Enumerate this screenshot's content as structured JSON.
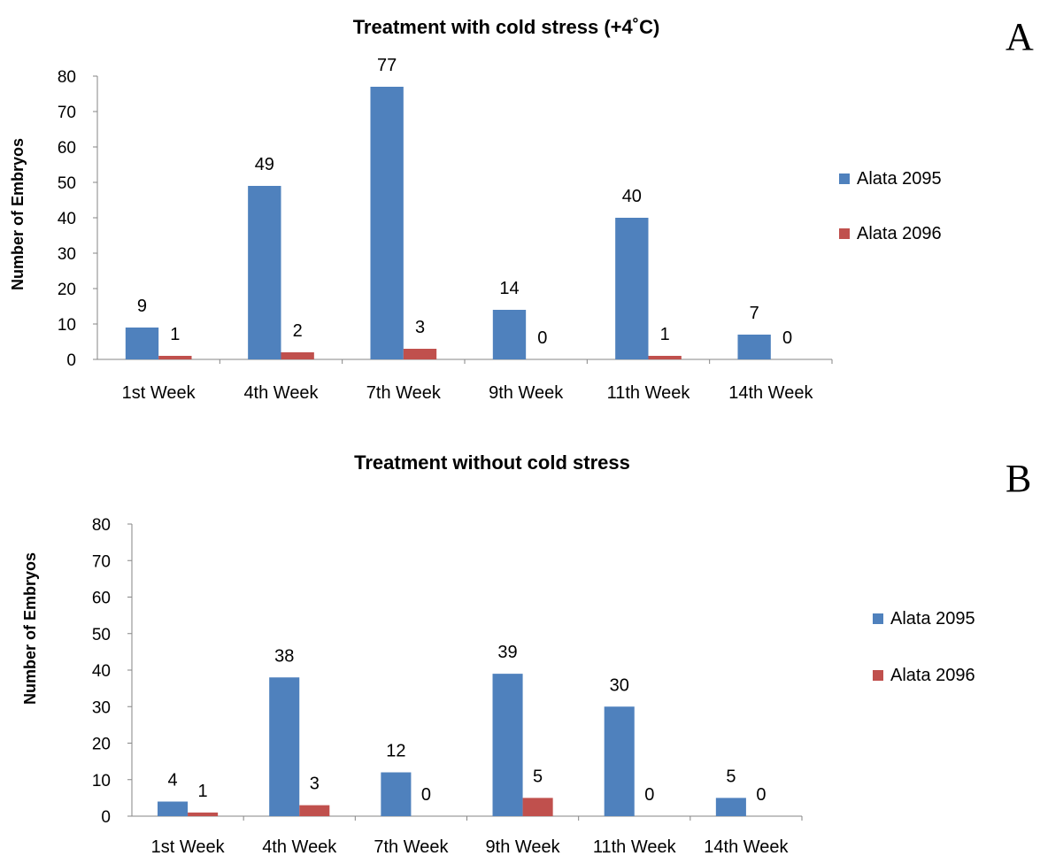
{
  "chart_data": [
    {
      "type": "bar",
      "panel_label": "A",
      "title": "Treatment with cold stress (+4˚C)",
      "ylabel": "Number of Embryos",
      "xlabel": "",
      "ylim": [
        0,
        80
      ],
      "yticks": [
        0,
        10,
        20,
        30,
        40,
        50,
        60,
        70,
        80
      ],
      "categories": [
        "1st Week",
        "4th Week",
        "7th Week",
        "9th Week",
        "11th Week",
        "14th Week"
      ],
      "legend_position": "right",
      "series": [
        {
          "name": "Alata 2095",
          "color": "#4F81BD",
          "values": [
            9,
            49,
            77,
            14,
            40,
            7
          ]
        },
        {
          "name": "Alata 2096",
          "color": "#C0504D",
          "values": [
            1,
            2,
            3,
            0,
            1,
            0
          ]
        }
      ]
    },
    {
      "type": "bar",
      "panel_label": "B",
      "title": "Treatment without cold stress",
      "ylabel": "Number of Embryos",
      "xlabel": "",
      "ylim": [
        0,
        80
      ],
      "yticks": [
        0,
        10,
        20,
        30,
        40,
        50,
        60,
        70,
        80
      ],
      "categories": [
        "1st Week",
        "4th Week",
        "7th Week",
        "9th Week",
        "11th Week",
        "14th Week"
      ],
      "legend_position": "right",
      "series": [
        {
          "name": "Alata 2095",
          "color": "#4F81BD",
          "values": [
            4,
            38,
            12,
            39,
            30,
            5
          ]
        },
        {
          "name": "Alata  2096",
          "color": "#C0504D",
          "values": [
            1,
            3,
            0,
            5,
            0,
            0
          ]
        }
      ]
    }
  ]
}
